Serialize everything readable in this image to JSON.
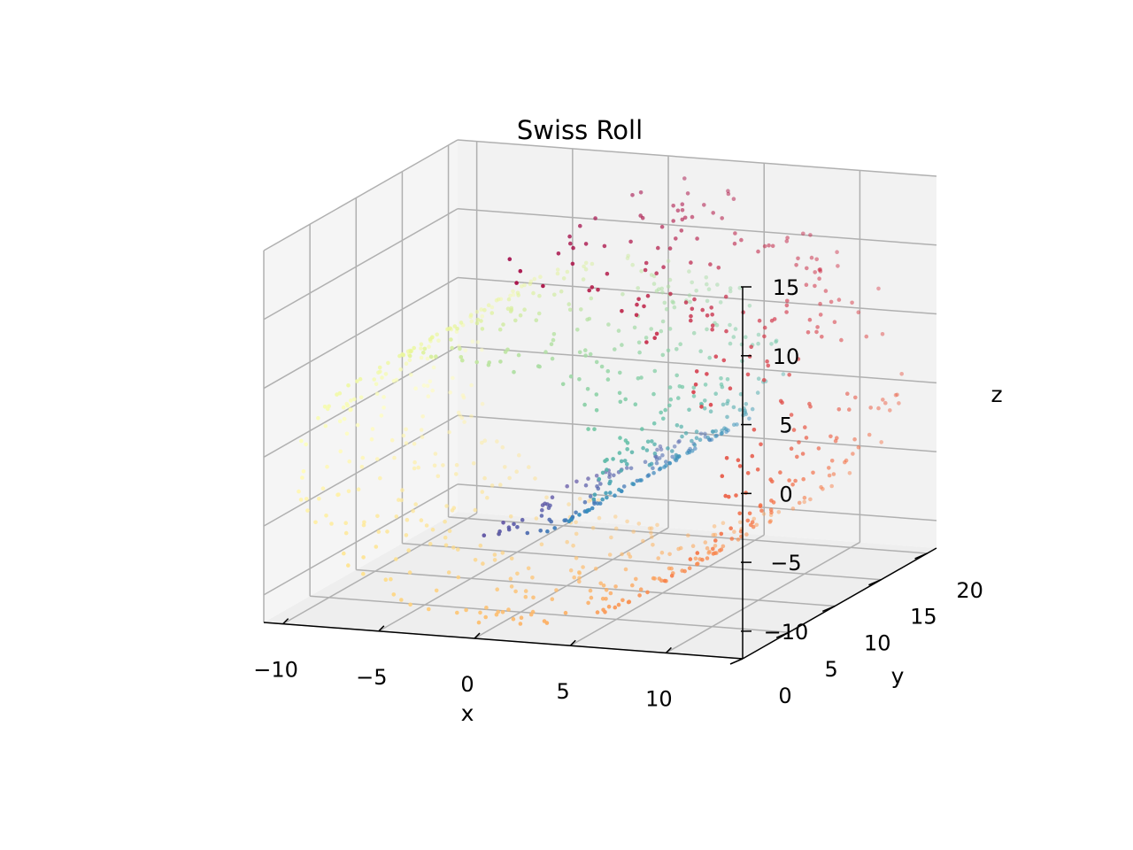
{
  "chart_data": {
    "type": "scatter",
    "title": "Swiss Roll",
    "xlabel": "x",
    "ylabel": "y",
    "zlabel": "z",
    "x_ticks": [
      "−10",
      "−5",
      "0",
      "5",
      "10"
    ],
    "x_tick_values": [
      -10,
      -5,
      0,
      5,
      10
    ],
    "y_ticks": [
      "0",
      "5",
      "10",
      "15",
      "20"
    ],
    "y_tick_values": [
      0,
      5,
      10,
      15,
      20
    ],
    "z_ticks": [
      "−10",
      "−5",
      "0",
      "5",
      "10",
      "15"
    ],
    "z_tick_values": [
      -10,
      -5,
      0,
      5,
      10,
      15
    ],
    "xlim": [
      -11,
      14
    ],
    "ylim": [
      0,
      21
    ],
    "zlim": [
      -12,
      15
    ],
    "grid": true,
    "colormap": "Spectral",
    "colormap_stops": [
      "#9e0142",
      "#d53e4f",
      "#f46d43",
      "#fdae61",
      "#fee08b",
      "#ffffbf",
      "#e6f598",
      "#abdda4",
      "#66c2a5",
      "#3288bd",
      "#5e4fa2"
    ],
    "manifold_t_range": [
      4.71,
      14.14
    ],
    "point_count": 1000,
    "pane_colors": {
      "left": "#f5f5f5",
      "back": "#f2f2f2",
      "floor": "#eeeeee"
    },
    "grid_color": "#b0b0b0"
  }
}
